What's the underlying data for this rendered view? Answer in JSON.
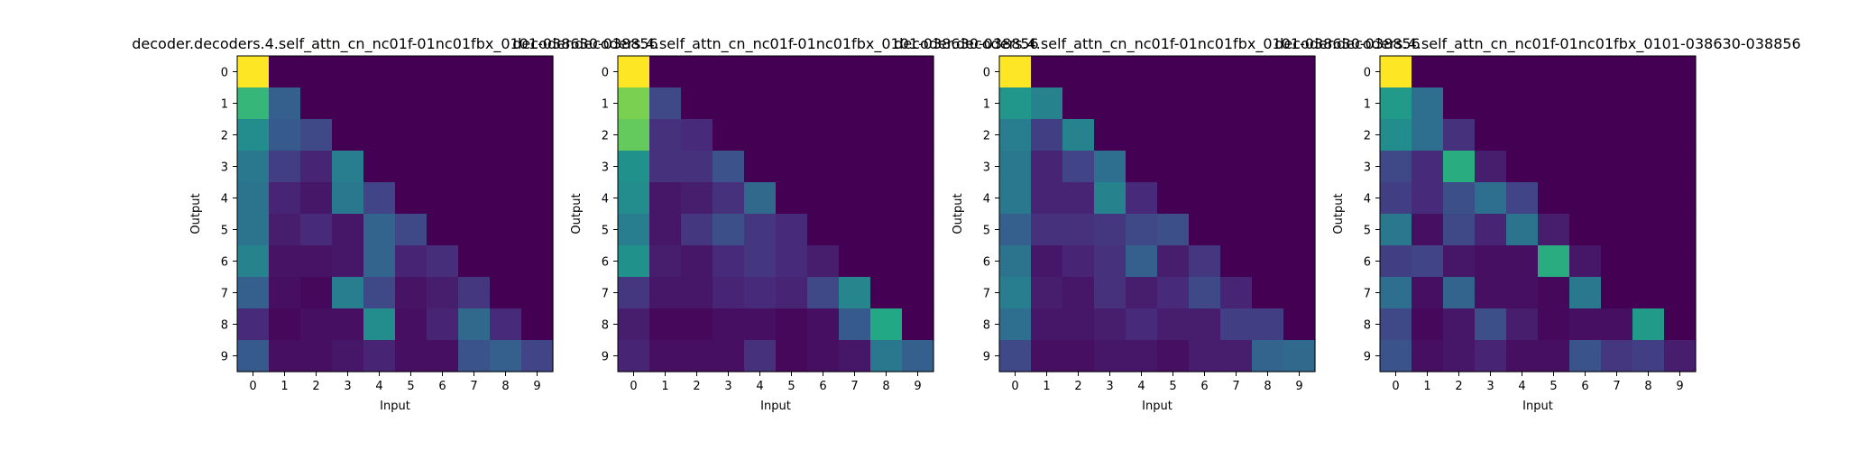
{
  "figure": {
    "background": "#ffffff",
    "colormap": "viridis",
    "vmin": 0,
    "vmax": 1
  },
  "chart_data": [
    {
      "type": "heatmap",
      "title": "decoder.decoders.4.self_attn_cn_nc01f-01nc01fbx_0101-038630-038856",
      "xlabel": "Input",
      "ylabel": "Output",
      "x_ticks": [
        "0",
        "1",
        "2",
        "3",
        "4",
        "5",
        "6",
        "7",
        "8",
        "9"
      ],
      "y_ticks": [
        "0",
        "1",
        "2",
        "3",
        "4",
        "5",
        "6",
        "7",
        "8",
        "9"
      ],
      "values": [
        [
          1.0,
          0,
          0,
          0,
          0,
          0,
          0,
          0,
          0,
          0
        ],
        [
          0.66,
          0.3,
          0,
          0,
          0,
          0,
          0,
          0,
          0,
          0
        ],
        [
          0.48,
          0.28,
          0.22,
          0,
          0,
          0,
          0,
          0,
          0,
          0
        ],
        [
          0.4,
          0.18,
          0.1,
          0.42,
          0,
          0,
          0,
          0,
          0,
          0
        ],
        [
          0.38,
          0.1,
          0.06,
          0.4,
          0.2,
          0,
          0,
          0,
          0,
          0
        ],
        [
          0.38,
          0.08,
          0.12,
          0.06,
          0.32,
          0.22,
          0,
          0,
          0,
          0
        ],
        [
          0.44,
          0.05,
          0.05,
          0.06,
          0.32,
          0.1,
          0.13,
          0,
          0,
          0
        ],
        [
          0.3,
          0.04,
          0.02,
          0.42,
          0.22,
          0.05,
          0.08,
          0.16,
          0,
          0
        ],
        [
          0.12,
          0.02,
          0.04,
          0.04,
          0.48,
          0.04,
          0.1,
          0.34,
          0.12,
          0
        ],
        [
          0.28,
          0.04,
          0.04,
          0.06,
          0.1,
          0.04,
          0.04,
          0.26,
          0.3,
          0.2
        ]
      ]
    },
    {
      "type": "heatmap",
      "title": "decoder.decoders.4.self_attn_cn_nc01f-01nc01fbx_0101-038630-038856",
      "xlabel": "Input",
      "ylabel": "Output",
      "x_ticks": [
        "0",
        "1",
        "2",
        "3",
        "4",
        "5",
        "6",
        "7",
        "8",
        "9"
      ],
      "y_ticks": [
        "0",
        "1",
        "2",
        "3",
        "4",
        "5",
        "6",
        "7",
        "8",
        "9"
      ],
      "values": [
        [
          1.0,
          0,
          0,
          0,
          0,
          0,
          0,
          0,
          0,
          0
        ],
        [
          0.8,
          0.22,
          0,
          0,
          0,
          0,
          0,
          0,
          0,
          0
        ],
        [
          0.76,
          0.14,
          0.12,
          0,
          0,
          0,
          0,
          0,
          0,
          0
        ],
        [
          0.5,
          0.14,
          0.14,
          0.25,
          0,
          0,
          0,
          0,
          0,
          0
        ],
        [
          0.48,
          0.06,
          0.08,
          0.14,
          0.34,
          0,
          0,
          0,
          0,
          0
        ],
        [
          0.42,
          0.06,
          0.16,
          0.24,
          0.16,
          0.12,
          0,
          0,
          0,
          0
        ],
        [
          0.5,
          0.08,
          0.06,
          0.12,
          0.16,
          0.12,
          0.08,
          0,
          0,
          0
        ],
        [
          0.16,
          0.06,
          0.06,
          0.1,
          0.12,
          0.1,
          0.22,
          0.45,
          0,
          0
        ],
        [
          0.08,
          0.02,
          0.02,
          0.04,
          0.04,
          0.02,
          0.04,
          0.28,
          0.6,
          0
        ],
        [
          0.1,
          0.04,
          0.04,
          0.04,
          0.14,
          0.02,
          0.04,
          0.06,
          0.4,
          0.3
        ]
      ]
    },
    {
      "type": "heatmap",
      "title": "decoder.decoders.4.self_attn_cn_nc01f-01nc01fbx_0101-038630-038856",
      "xlabel": "Input",
      "ylabel": "Output",
      "x_ticks": [
        "0",
        "1",
        "2",
        "3",
        "4",
        "5",
        "6",
        "7",
        "8",
        "9"
      ],
      "y_ticks": [
        "0",
        "1",
        "2",
        "3",
        "4",
        "5",
        "6",
        "7",
        "8",
        "9"
      ],
      "values": [
        [
          1.0,
          0,
          0,
          0,
          0,
          0,
          0,
          0,
          0,
          0
        ],
        [
          0.52,
          0.44,
          0,
          0,
          0,
          0,
          0,
          0,
          0,
          0
        ],
        [
          0.42,
          0.18,
          0.44,
          0,
          0,
          0,
          0,
          0,
          0,
          0
        ],
        [
          0.4,
          0.1,
          0.2,
          0.36,
          0,
          0,
          0,
          0,
          0,
          0
        ],
        [
          0.4,
          0.1,
          0.1,
          0.44,
          0.12,
          0,
          0,
          0,
          0,
          0
        ],
        [
          0.3,
          0.14,
          0.14,
          0.16,
          0.22,
          0.24,
          0,
          0,
          0,
          0
        ],
        [
          0.38,
          0.06,
          0.1,
          0.14,
          0.3,
          0.08,
          0.16,
          0,
          0,
          0
        ],
        [
          0.42,
          0.08,
          0.06,
          0.14,
          0.08,
          0.12,
          0.22,
          0.1,
          0,
          0
        ],
        [
          0.36,
          0.06,
          0.06,
          0.08,
          0.12,
          0.08,
          0.08,
          0.18,
          0.18,
          0
        ],
        [
          0.22,
          0.04,
          0.04,
          0.06,
          0.06,
          0.04,
          0.08,
          0.08,
          0.32,
          0.34
        ]
      ]
    },
    {
      "type": "heatmap",
      "title": "decoder.decoders.4.self_attn_cn_nc01f-01nc01fbx_0101-038630-038856",
      "xlabel": "Input",
      "ylabel": "Output",
      "x_ticks": [
        "0",
        "1",
        "2",
        "3",
        "4",
        "5",
        "6",
        "7",
        "8",
        "9"
      ],
      "y_ticks": [
        "0",
        "1",
        "2",
        "3",
        "4",
        "5",
        "6",
        "7",
        "8",
        "9"
      ],
      "values": [
        [
          1.0,
          0,
          0,
          0,
          0,
          0,
          0,
          0,
          0,
          0
        ],
        [
          0.54,
          0.36,
          0,
          0,
          0,
          0,
          0,
          0,
          0,
          0
        ],
        [
          0.48,
          0.36,
          0.14,
          0,
          0,
          0,
          0,
          0,
          0,
          0
        ],
        [
          0.22,
          0.12,
          0.62,
          0.08,
          0,
          0,
          0,
          0,
          0,
          0
        ],
        [
          0.18,
          0.12,
          0.24,
          0.36,
          0.2,
          0,
          0,
          0,
          0,
          0
        ],
        [
          0.4,
          0.04,
          0.22,
          0.1,
          0.38,
          0.08,
          0,
          0,
          0,
          0
        ],
        [
          0.18,
          0.2,
          0.06,
          0.04,
          0.04,
          0.62,
          0.06,
          0,
          0,
          0
        ],
        [
          0.36,
          0.04,
          0.32,
          0.04,
          0.04,
          0.02,
          0.4,
          0,
          0,
          0
        ],
        [
          0.22,
          0.02,
          0.06,
          0.24,
          0.08,
          0.02,
          0.04,
          0.04,
          0.54,
          0
        ],
        [
          0.26,
          0.04,
          0.06,
          0.1,
          0.04,
          0.04,
          0.26,
          0.16,
          0.18,
          0.08
        ]
      ]
    }
  ]
}
